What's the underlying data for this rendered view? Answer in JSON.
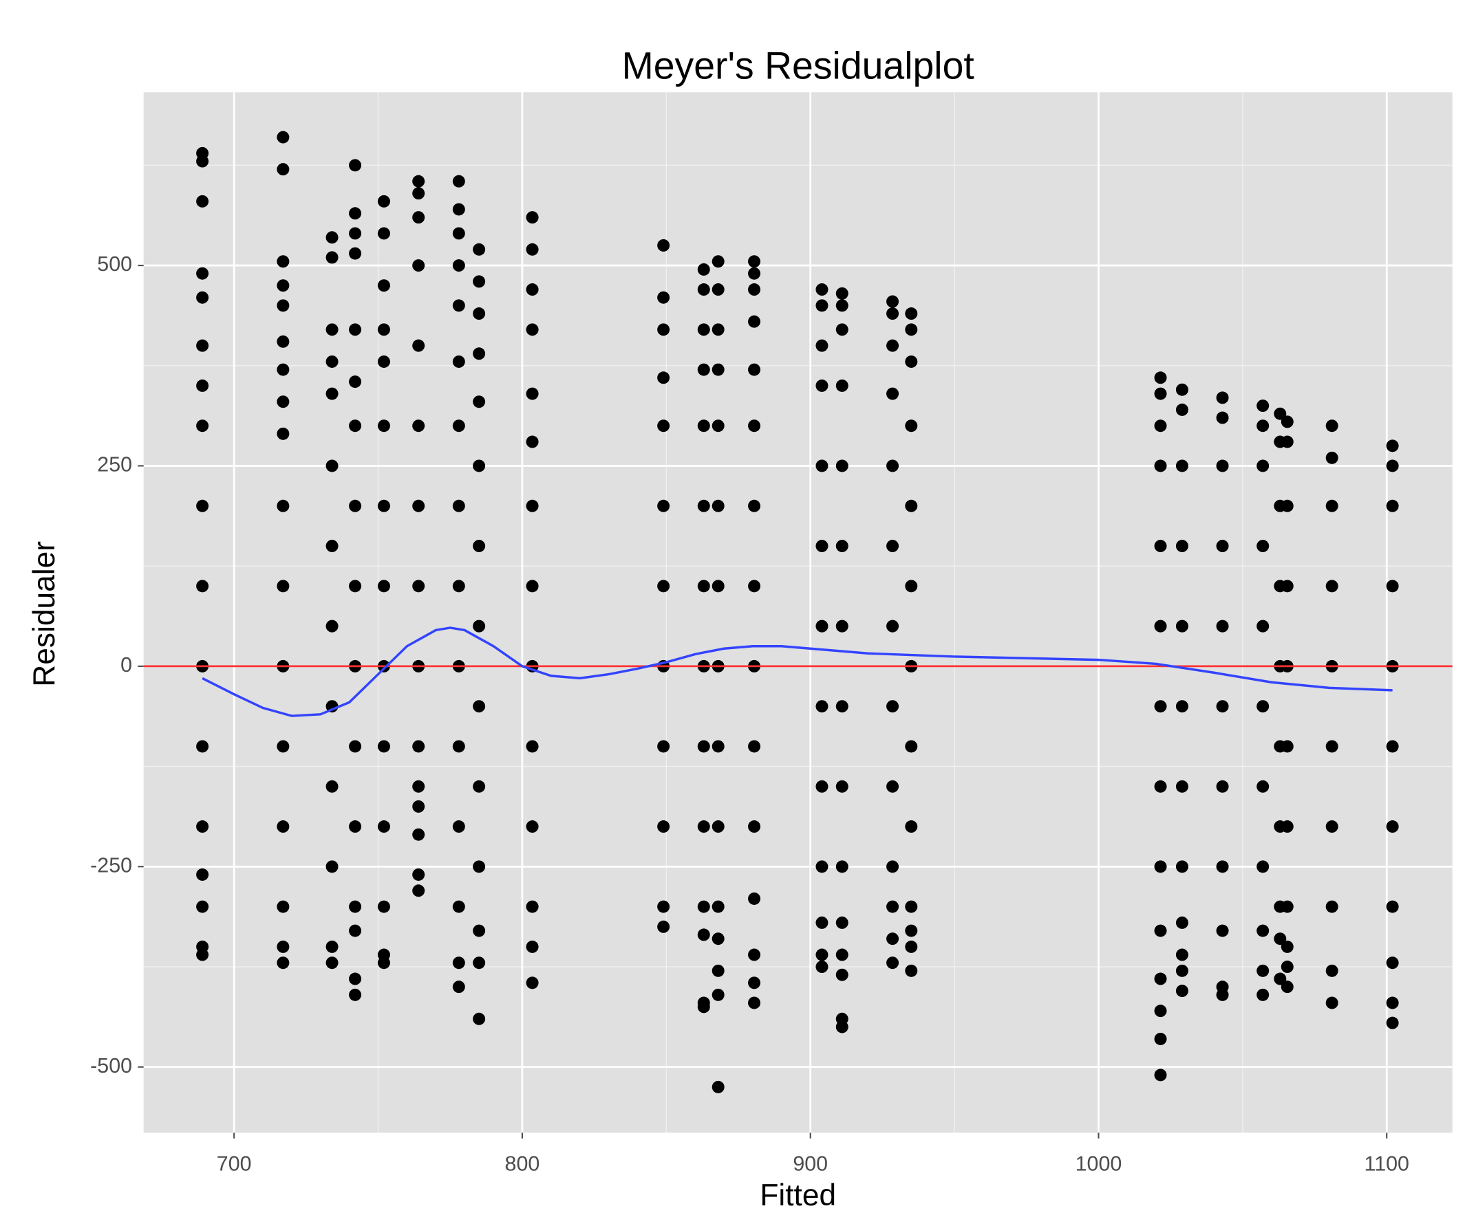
{
  "chart_data": {
    "type": "scatter",
    "title": "Meyer's Residualplot",
    "xlabel": "Fitted",
    "ylabel": "Residualer",
    "xlim": [
      668.6,
      1122.8
    ],
    "ylim": [
      -582,
      716
    ],
    "xticks": [
      700,
      800,
      900,
      1000,
      1100
    ],
    "yticks": [
      -500,
      -250,
      0,
      250,
      500
    ],
    "grid": true,
    "color": "#000000",
    "x": [
      689,
      689,
      689,
      689,
      689,
      689,
      689,
      689,
      689,
      689,
      689,
      689,
      689,
      689,
      689,
      689,
      689,
      717,
      717,
      717,
      717,
      717,
      717,
      717,
      717,
      717,
      717,
      717,
      717,
      717,
      717,
      717,
      717,
      717,
      734,
      734,
      734,
      734,
      734,
      734,
      734,
      734,
      734,
      734,
      734,
      734,
      734,
      742,
      742,
      742,
      742,
      742,
      742,
      742,
      742,
      742,
      742,
      742,
      742,
      742,
      742,
      742,
      742,
      752,
      752,
      752,
      752,
      752,
      752,
      752,
      752,
      752,
      752,
      752,
      752,
      752,
      752,
      764,
      764,
      764,
      764,
      764,
      764,
      764,
      764,
      764,
      764,
      764,
      764,
      764,
      764,
      764,
      778,
      778,
      778,
      778,
      778,
      778,
      778,
      778,
      778,
      778,
      778,
      778,
      778,
      778,
      778,
      785,
      785,
      785,
      785,
      785,
      785,
      785,
      785,
      785,
      785,
      785,
      785,
      785,
      785,
      803.5,
      803.5,
      803.5,
      803.5,
      803.5,
      803.5,
      803.5,
      803.5,
      803.5,
      803.5,
      803.5,
      803.5,
      803.5,
      803.5,
      849,
      849,
      849,
      849,
      849,
      849,
      849,
      849,
      849,
      849,
      849,
      849,
      863,
      863,
      863,
      863,
      863,
      863,
      863,
      863,
      863,
      863,
      863,
      863,
      863,
      863,
      868,
      868,
      868,
      868,
      868,
      868,
      868,
      868,
      868,
      868,
      868,
      868,
      868,
      868,
      868,
      880.5,
      880.5,
      880.5,
      880.5,
      880.5,
      880.5,
      880.5,
      880.5,
      880.5,
      880.5,
      880.5,
      880.5,
      880.5,
      880.5,
      880.5,
      904,
      904,
      904,
      904,
      904,
      904,
      904,
      904,
      904,
      904,
      904,
      904,
      904,
      911,
      911,
      911,
      911,
      911,
      911,
      911,
      911,
      911,
      911,
      911,
      911,
      911,
      911,
      911,
      928.5,
      928.5,
      928.5,
      928.5,
      928.5,
      928.5,
      928.5,
      928.5,
      928.5,
      928.5,
      928.5,
      928.5,
      928.5,
      935,
      935,
      935,
      935,
      935,
      935,
      935,
      935,
      935,
      935,
      935,
      935,
      935,
      1021.5,
      1021.5,
      1021.5,
      1021.5,
      1021.5,
      1021.5,
      1021.5,
      1021.5,
      1021.5,
      1021.5,
      1021.5,
      1021.5,
      1021.5,
      1021.5,
      1029,
      1029,
      1029,
      1029,
      1029,
      1029,
      1029,
      1029,
      1029,
      1029,
      1029,
      1029,
      1043,
      1043,
      1043,
      1043,
      1043,
      1043,
      1043,
      1043,
      1043,
      1043,
      1043,
      1057,
      1057,
      1057,
      1057,
      1057,
      1057,
      1057,
      1057,
      1057,
      1057,
      1057,
      1063,
      1063,
      1063,
      1063,
      1063,
      1063,
      1063,
      1063,
      1063,
      1063,
      1065.5,
      1065.5,
      1065.5,
      1065.5,
      1065.5,
      1065.5,
      1065.5,
      1065.5,
      1065.5,
      1065.5,
      1065.5,
      1081,
      1081,
      1081,
      1081,
      1081,
      1081,
      1081,
      1081,
      1081,
      1081,
      1102,
      1102,
      1102,
      1102,
      1102,
      1102,
      1102,
      1102,
      1102,
      1102,
      1102
    ],
    "values": [
      640,
      630,
      580,
      490,
      460,
      400,
      350,
      300,
      200,
      100,
      0,
      -100,
      -200,
      -260,
      -300,
      -350,
      -360,
      660,
      620,
      505,
      475,
      450,
      405,
      370,
      330,
      290,
      200,
      100,
      0,
      -100,
      -200,
      -300,
      -350,
      -370,
      535,
      510,
      420,
      380,
      340,
      250,
      150,
      50,
      -50,
      -150,
      -250,
      -350,
      -370,
      625,
      565,
      540,
      515,
      420,
      355,
      300,
      200,
      100,
      0,
      -100,
      -200,
      -300,
      -330,
      -390,
      -410,
      580,
      540,
      475,
      420,
      380,
      300,
      200,
      100,
      0,
      -100,
      -200,
      -300,
      -360,
      -370,
      605,
      590,
      560,
      500,
      400,
      300,
      200,
      100,
      0,
      -100,
      -150,
      -175,
      -210,
      -260,
      -280,
      605,
      570,
      540,
      500,
      450,
      380,
      300,
      200,
      100,
      0,
      -100,
      -200,
      -300,
      -370,
      -400,
      520,
      480,
      440,
      390,
      330,
      250,
      150,
      50,
      -50,
      -150,
      -250,
      -330,
      -370,
      -440,
      560,
      520,
      470,
      420,
      340,
      280,
      200,
      100,
      0,
      -100,
      -200,
      -300,
      -350,
      -395,
      525,
      460,
      420,
      360,
      300,
      200,
      100,
      0,
      -100,
      -200,
      -300,
      -325,
      495,
      470,
      420,
      370,
      300,
      200,
      100,
      0,
      -100,
      -200,
      -300,
      -335,
      -420,
      -425,
      505,
      470,
      420,
      370,
      300,
      200,
      100,
      0,
      -100,
      -200,
      -300,
      -340,
      -380,
      -410,
      -525,
      505,
      490,
      470,
      430,
      370,
      300,
      200,
      100,
      0,
      -100,
      -200,
      -290,
      -360,
      -395,
      -420,
      470,
      450,
      400,
      350,
      250,
      150,
      50,
      -50,
      -150,
      -250,
      -320,
      -360,
      -375,
      465,
      450,
      420,
      350,
      250,
      150,
      50,
      -50,
      -150,
      -250,
      -320,
      -360,
      -385,
      -440,
      -450,
      455,
      440,
      400,
      340,
      250,
      150,
      50,
      -50,
      -150,
      -250,
      -300,
      -340,
      -370,
      440,
      420,
      380,
      300,
      200,
      100,
      0,
      -100,
      -200,
      -300,
      -330,
      -350,
      -380,
      360,
      340,
      300,
      250,
      150,
      50,
      -50,
      -150,
      -250,
      -330,
      -390,
      -430,
      -465,
      -510,
      345,
      320,
      250,
      150,
      50,
      -50,
      -150,
      -250,
      -320,
      -360,
      -380,
      -405,
      335,
      310,
      250,
      150,
      50,
      -50,
      -150,
      -250,
      -330,
      -400,
      -410,
      325,
      300,
      250,
      150,
      50,
      -50,
      -150,
      -250,
      -330,
      -380,
      -410,
      315,
      280,
      200,
      100,
      0,
      -100,
      -200,
      -300,
      -340,
      -390,
      305,
      280,
      200,
      100,
      0,
      -100,
      -200,
      -300,
      -350,
      -375,
      -400,
      300,
      260,
      200,
      100,
      0,
      -100,
      -200,
      -300,
      -380,
      -420,
      275,
      250,
      200,
      100,
      0,
      -100,
      -200,
      -300,
      -370,
      -420,
      -445
    ],
    "hline": {
      "value": 0,
      "color": "#ff3333"
    },
    "smooth": {
      "color": "#3344ff",
      "x": [
        689,
        700,
        710,
        720,
        730,
        740,
        750,
        760,
        770,
        775,
        780,
        790,
        800,
        810,
        820,
        830,
        840,
        850,
        860,
        870,
        880,
        890,
        900,
        920,
        950,
        1000,
        1020,
        1040,
        1060,
        1080,
        1102
      ],
      "values": [
        -15,
        -35,
        -52,
        -62,
        -60,
        -45,
        -10,
        25,
        45,
        48,
        45,
        25,
        0,
        -12,
        -15,
        -10,
        -3,
        5,
        15,
        22,
        25,
        25,
        22,
        16,
        12,
        8,
        3,
        -8,
        -20,
        -27,
        -30
      ]
    }
  }
}
